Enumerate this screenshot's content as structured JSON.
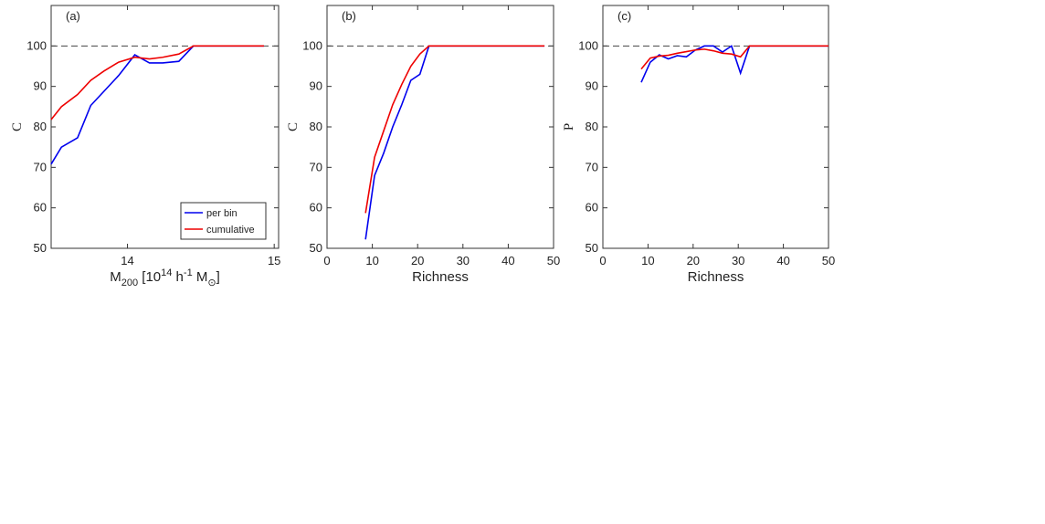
{
  "chart_data": [
    {
      "type": "line",
      "panel_label": "(a)",
      "ylabel": "C",
      "xlabel": [
        {
          "text": "M",
          "script": "normal"
        },
        {
          "text": "200",
          "script": "sub"
        },
        {
          "text": " [10",
          "script": "normal"
        },
        {
          "text": "14",
          "script": "sup"
        },
        {
          "text": " h",
          "script": "normal"
        },
        {
          "text": "-1",
          "script": "sup"
        },
        {
          "text": " M",
          "script": "normal"
        },
        {
          "text": "⊙",
          "script": "sub"
        },
        {
          "text": "]",
          "script": "normal"
        }
      ],
      "xlim": [
        13.48,
        15.03
      ],
      "xticks": [
        14,
        15
      ],
      "ylim": [
        50,
        110
      ],
      "yticks": [
        50,
        60,
        70,
        80,
        90,
        100
      ],
      "reference_line": 100,
      "legend": "lower right",
      "x": [
        13.48,
        13.55,
        13.66,
        13.75,
        13.84,
        13.94,
        14.05,
        14.15,
        14.24,
        14.35,
        14.45,
        14.93
      ],
      "series": [
        {
          "name": "per bin",
          "color": "#0000ee",
          "values": [
            70.8,
            75,
            77.3,
            85.3,
            88.8,
            92.7,
            97.8,
            95.8,
            95.8,
            96.2,
            100,
            100
          ]
        },
        {
          "name": "cumulative",
          "color": "#ee0000",
          "values": [
            81.8,
            85,
            88,
            91.5,
            93.8,
            96,
            97.2,
            96.8,
            97.2,
            98,
            100,
            100
          ]
        }
      ]
    },
    {
      "type": "line",
      "panel_label": "(b)",
      "ylabel": "C",
      "xlabel": [
        {
          "text": "Richness",
          "script": "normal"
        }
      ],
      "xlim": [
        0,
        50
      ],
      "xticks": [
        0,
        10,
        20,
        30,
        40,
        50
      ],
      "ylim": [
        50,
        110
      ],
      "yticks": [
        50,
        60,
        70,
        80,
        90,
        100
      ],
      "reference_line": 100,
      "x": [
        8.5,
        10.5,
        12.5,
        14.5,
        16.5,
        18.5,
        20.5,
        22.5,
        48
      ],
      "series": [
        {
          "color": "#0000ee",
          "values": [
            52.2,
            68,
            73.5,
            80,
            85.5,
            91.5,
            93,
            100,
            100
          ]
        },
        {
          "color": "#ee0000",
          "values": [
            58.7,
            72.5,
            79,
            85.5,
            90.5,
            95,
            98,
            100,
            100
          ]
        }
      ]
    },
    {
      "type": "line",
      "panel_label": "(c)",
      "ylabel": "P",
      "xlabel": [
        {
          "text": "Richness",
          "script": "normal"
        }
      ],
      "xlim": [
        0,
        50
      ],
      "xticks": [
        0,
        10,
        20,
        30,
        40,
        50
      ],
      "ylim": [
        50,
        110
      ],
      "yticks": [
        50,
        60,
        70,
        80,
        90,
        100
      ],
      "reference_line": 100,
      "x": [
        8.5,
        10.5,
        12.5,
        14.5,
        16.5,
        18.5,
        20.5,
        22.5,
        24.5,
        26.5,
        28.5,
        30.5,
        32.5,
        50
      ],
      "series": [
        {
          "color": "#0000ee",
          "values": [
            91,
            96,
            97.8,
            96.8,
            97.6,
            97.3,
            99,
            100,
            100,
            98.5,
            100,
            93.3,
            100,
            100
          ]
        },
        {
          "color": "#ee0000",
          "values": [
            94.3,
            97,
            97.5,
            97.7,
            98.2,
            98.6,
            99,
            99.2,
            98.8,
            98.2,
            98,
            97.3,
            100,
            100
          ]
        }
      ]
    }
  ]
}
